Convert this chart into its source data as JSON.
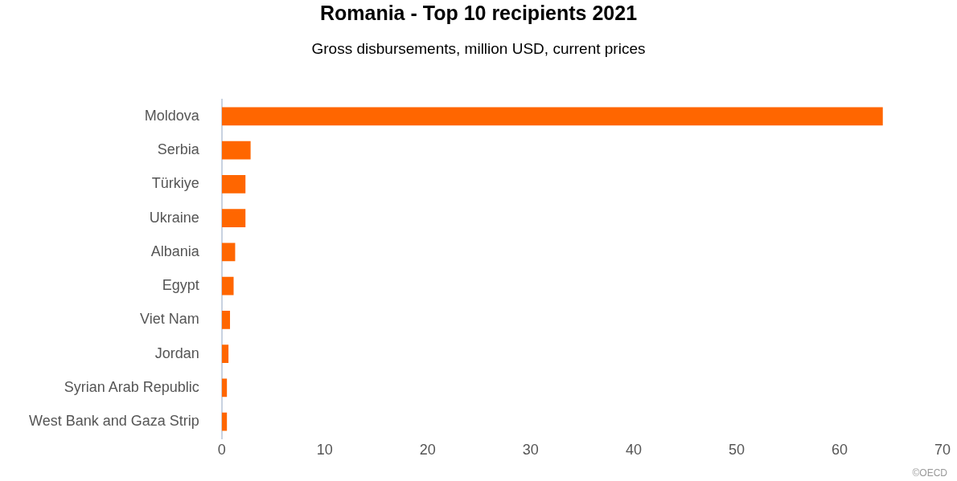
{
  "chart_data": {
    "type": "bar",
    "orientation": "horizontal",
    "title": "Romania - Top 10 recipients 2021",
    "subtitle": "Gross disbursements, million USD, current prices",
    "categories": [
      "Moldova",
      "Serbia",
      "Türkiye",
      "Ukraine",
      "Albania",
      "Egypt",
      "Viet Nam",
      "Jordan",
      "Syrian Arab Republic",
      "West Bank and Gaza Strip"
    ],
    "values": [
      64.2,
      2.8,
      2.3,
      2.3,
      1.3,
      1.15,
      0.8,
      0.65,
      0.5,
      0.5
    ],
    "color": "#ff6600",
    "xlim": [
      0,
      70
    ],
    "xticks": [
      0,
      10,
      20,
      30,
      40,
      50,
      60,
      70
    ],
    "grid": false,
    "legend": false,
    "annotations": [
      "©OECD"
    ]
  }
}
